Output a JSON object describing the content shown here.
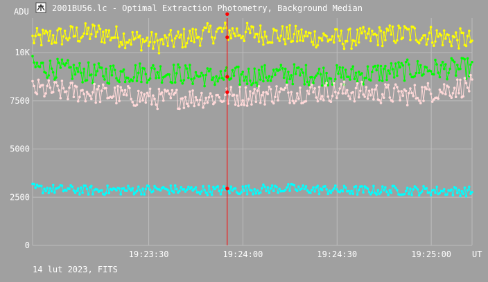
{
  "window": {
    "title": "2001BU56.lc - Optimal Extraction Photometry, Background Median",
    "icon": "telescope-icon"
  },
  "footer": {
    "date_label": "14 lut 2023, FITS"
  },
  "colors": {
    "background": "#a0a0a0",
    "grid": "#bdbdbd",
    "axis_text": "#ffffff",
    "cursor": "#ff0000"
  },
  "chart_data": {
    "type": "line",
    "title": "2001BU56.lc - Optimal Extraction Photometry, Background Median",
    "ylabel": "ADU",
    "xlabel": "UT",
    "x_range": [
      "19:22:53",
      "19:25:13"
    ],
    "ylim": [
      0,
      11800
    ],
    "y_ticks": [
      {
        "value": 0,
        "label": "0"
      },
      {
        "value": 2500,
        "label": "2500"
      },
      {
        "value": 5000,
        "label": "5000"
      },
      {
        "value": 7500,
        "label": "7500"
      },
      {
        "value": 10000,
        "label": "10K"
      }
    ],
    "x_ticks": [
      {
        "value": "19:23:30",
        "label": "19:23:30"
      },
      {
        "value": "19:24:00",
        "label": "19:24:00"
      },
      {
        "value": "19:24:30",
        "label": "19:24:30"
      },
      {
        "value": "19:25:00",
        "label": "19:25:00"
      }
    ],
    "cursor": {
      "x": "19:23:55",
      "markers": [
        12000,
        10800,
        8750,
        7950,
        2950
      ]
    },
    "grid": true,
    "series": [
      {
        "color": "#ffff00",
        "mean": 10800,
        "noise": 550,
        "values": [
          [
            0,
            10700
          ],
          [
            20,
            11050
          ],
          [
            40,
            10500
          ],
          [
            60,
            11100
          ],
          [
            80,
            10900
          ],
          [
            100,
            10700
          ],
          [
            120,
            11000
          ],
          [
            140,
            10650
          ],
          [
            160,
            11200
          ],
          [
            180,
            10800
          ],
          [
            200,
            10900
          ],
          [
            220,
            10600
          ],
          [
            240,
            10950
          ],
          [
            260,
            10850
          ]
        ]
      },
      {
        "color": "#00ff00",
        "mean": 9100,
        "noise": 550,
        "values": [
          [
            0,
            9300
          ],
          [
            20,
            8900
          ],
          [
            40,
            9000
          ],
          [
            60,
            8700
          ],
          [
            80,
            8900
          ],
          [
            100,
            8800
          ],
          [
            120,
            9100
          ],
          [
            140,
            9200
          ],
          [
            160,
            9350
          ],
          [
            180,
            9200
          ],
          [
            200,
            9300
          ],
          [
            220,
            9400
          ],
          [
            240,
            9350
          ],
          [
            260,
            9200
          ]
        ]
      },
      {
        "color": "#ffd8d8",
        "mean": 8300,
        "noise": 550,
        "values": [
          [
            0,
            8100
          ],
          [
            20,
            7900
          ],
          [
            40,
            7600
          ],
          [
            60,
            7700
          ],
          [
            80,
            7900
          ],
          [
            100,
            8000
          ],
          [
            120,
            7800
          ],
          [
            140,
            8300
          ],
          [
            160,
            8400
          ],
          [
            180,
            8600
          ],
          [
            200,
            8400
          ],
          [
            220,
            8600
          ],
          [
            240,
            8800
          ],
          [
            260,
            8700
          ]
        ]
      },
      {
        "color": "#00ffff",
        "mean": 2800,
        "noise": 250,
        "values": [
          [
            0,
            2950
          ],
          [
            20,
            2850
          ],
          [
            40,
            2900
          ],
          [
            60,
            2850
          ],
          [
            80,
            2950
          ],
          [
            100,
            2850
          ],
          [
            120,
            2850
          ],
          [
            140,
            2800
          ],
          [
            160,
            2750
          ],
          [
            180,
            2800
          ],
          [
            200,
            2700
          ],
          [
            220,
            2650
          ],
          [
            240,
            2700
          ],
          [
            260,
            2750
          ]
        ]
      }
    ]
  }
}
